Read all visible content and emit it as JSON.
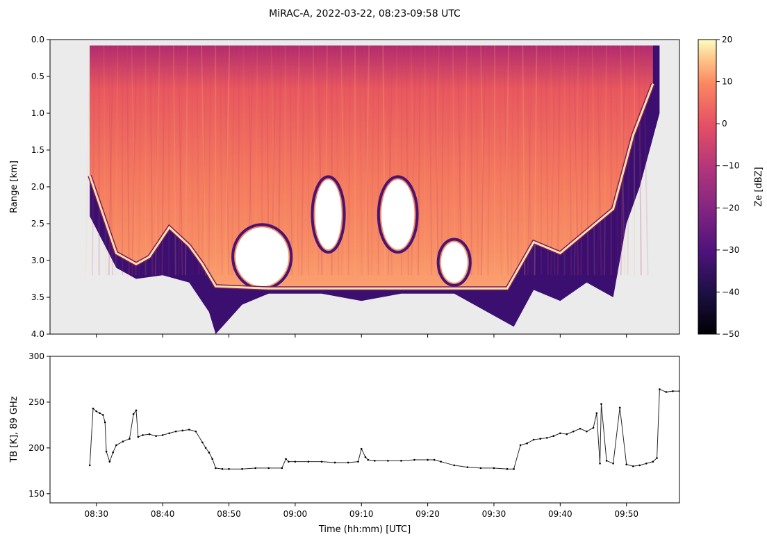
{
  "figure": {
    "title": "MiRAC-A, 2022-03-22, 08:23-09:58 UTC"
  },
  "chart_data": [
    {
      "type": "heatmap",
      "ylabel": "Range [km]",
      "y_ticks": [
        "0.0",
        "0.5",
        "1.0",
        "1.5",
        "2.0",
        "2.5",
        "3.0",
        "3.5",
        "4.0"
      ],
      "ylim": [
        4.0,
        0.0
      ],
      "x_ticks": [
        "08:30",
        "08:40",
        "08:50",
        "09:00",
        "09:10",
        "09:20",
        "09:30",
        "09:40",
        "09:50"
      ],
      "xlim": [
        "08:23",
        "09:58"
      ],
      "colorbar": {
        "label": "Ze [dBZ]",
        "colormap": "magma",
        "range": [
          -50,
          20
        ],
        "ticks": [
          20,
          10,
          0,
          -10,
          -20,
          -30,
          -40,
          -50
        ],
        "tick_labels": [
          "20",
          "10",
          "0",
          "−10",
          "−20",
          "−30",
          "−40",
          "−50"
        ]
      },
      "colors": {
        "nodata": "#ebebeb",
        "surface": "#fde3a0"
      },
      "surface_echo": {
        "time": [
          "08:29",
          "08:33",
          "08:36",
          "08:38",
          "08:41",
          "08:44",
          "08:46",
          "08:48",
          "08:56",
          "09:10",
          "09:20",
          "09:32",
          "09:36",
          "09:40",
          "09:44",
          "09:48",
          "09:51",
          "09:54"
        ],
        "range_km": [
          1.85,
          2.9,
          3.05,
          2.95,
          2.55,
          2.8,
          3.05,
          3.35,
          3.38,
          3.38,
          3.38,
          3.38,
          2.75,
          2.9,
          2.6,
          2.3,
          1.3,
          0.6
        ]
      },
      "data_edge": {
        "time": [
          "08:29",
          "08:33",
          "08:36",
          "08:40",
          "08:44",
          "08:47",
          "08:48",
          "08:52",
          "08:56",
          "09:04",
          "09:10",
          "09:16",
          "09:24",
          "09:33",
          "09:36",
          "09:40",
          "09:44",
          "09:48",
          "09:50",
          "09:52",
          "09:55"
        ],
        "range_km": [
          2.4,
          3.1,
          3.25,
          3.2,
          3.3,
          3.7,
          4.0,
          3.6,
          3.45,
          3.45,
          3.55,
          3.45,
          3.45,
          3.9,
          3.4,
          3.55,
          3.3,
          3.5,
          2.5,
          2.0,
          1.0
        ]
      },
      "clear_regions": [
        {
          "time": [
            "08:51",
            "08:59"
          ],
          "range_km": [
            2.55,
            3.35
          ]
        },
        {
          "time": [
            "09:03",
            "09:07"
          ],
          "range_km": [
            1.9,
            2.85
          ]
        },
        {
          "time": [
            "09:13",
            "09:18"
          ],
          "range_km": [
            1.9,
            2.85
          ]
        },
        {
          "time": [
            "09:22",
            "09:26"
          ],
          "range_km": [
            2.75,
            3.3
          ]
        }
      ]
    },
    {
      "type": "scatter",
      "ylabel": "TB [K], 89 GHz",
      "xlabel": "Time (hh:mm) [UTC]",
      "ylim": [
        140,
        300
      ],
      "y_ticks": [
        "150",
        "200",
        "250",
        "300"
      ],
      "x_ticks": [
        "08:30",
        "08:40",
        "08:50",
        "09:00",
        "09:10",
        "09:20",
        "09:30",
        "09:40",
        "09:50"
      ],
      "xlim": [
        "08:23",
        "09:58"
      ],
      "color": "#000000",
      "series": [
        {
          "time_min_after_0800": [
            29,
            29.5,
            30,
            30.5,
            31,
            31.3,
            31.5,
            32,
            32.5,
            33,
            34,
            35,
            35.6,
            36,
            36.3,
            37,
            38,
            39,
            40,
            41,
            42,
            43,
            44,
            45,
            46,
            46.5,
            47,
            47.5,
            48,
            49,
            50,
            52,
            54,
            56,
            58,
            58.6,
            59,
            60,
            62,
            64,
            66,
            68,
            69.5,
            70,
            70.6,
            71,
            72,
            74,
            76,
            78,
            80,
            81,
            82,
            84,
            86,
            88,
            90,
            92,
            93,
            94,
            95,
            96,
            97,
            98,
            99,
            100,
            101,
            102,
            103,
            104,
            105,
            105.5,
            106,
            106.2,
            107,
            108,
            109,
            110,
            111,
            112,
            113,
            114,
            114.6,
            115,
            116,
            117,
            118
          ],
          "tb_k": [
            181,
            243,
            240,
            238,
            236,
            228,
            196,
            185,
            195,
            203,
            207,
            210,
            237,
            241,
            212,
            214,
            215,
            213,
            214,
            216,
            218,
            219,
            220,
            218,
            206,
            200,
            195,
            188,
            178,
            177,
            177,
            177,
            178,
            178,
            178,
            188,
            185,
            185,
            185,
            185,
            184,
            184,
            185,
            199,
            190,
            187,
            186,
            186,
            186,
            187,
            187,
            187,
            185,
            181,
            179,
            178,
            178,
            177,
            177,
            203,
            205,
            209,
            210,
            211,
            213,
            216,
            215,
            218,
            221,
            218,
            222,
            238,
            183,
            248,
            186,
            183,
            244,
            182,
            180,
            181,
            183,
            185,
            189,
            264,
            261,
            262,
            262
          ]
        }
      ]
    }
  ]
}
